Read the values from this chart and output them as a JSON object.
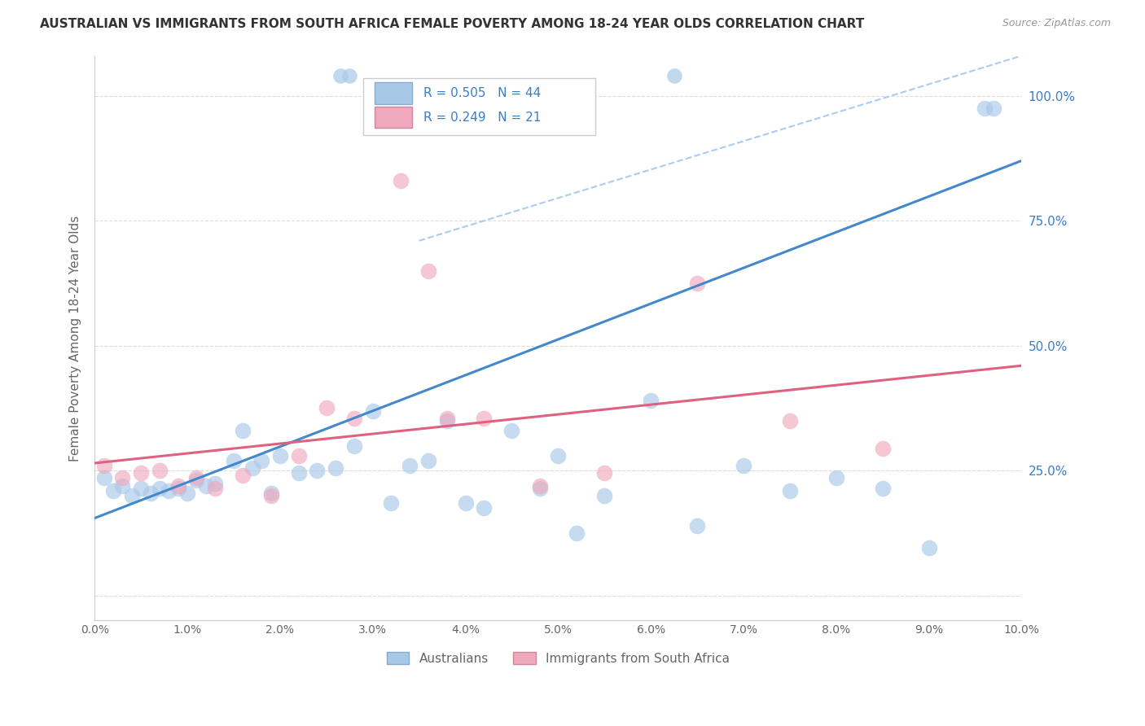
{
  "title": "AUSTRALIAN VS IMMIGRANTS FROM SOUTH AFRICA FEMALE POVERTY AMONG 18-24 YEAR OLDS CORRELATION CHART",
  "source": "Source: ZipAtlas.com",
  "ylabel": "Female Poverty Among 18-24 Year Olds",
  "R_blue": 0.505,
  "N_blue": 44,
  "R_pink": 0.249,
  "N_pink": 21,
  "blue_scatter_color": "#a8c8e8",
  "pink_scatter_color": "#f0a8be",
  "line_blue_color": "#4488cc",
  "line_pink_color": "#e06080",
  "line_dash_color": "#aaccee",
  "legend_label_blue": "Australians",
  "legend_label_pink": "Immigrants from South Africa",
  "legend_text_color": "#3a7dc9",
  "axis_text_color": "#666666",
  "right_axis_color": "#3a7dc9",
  "title_color": "#333333",
  "source_color": "#999999",
  "grid_color": "#dddddd",
  "aus_x": [
    0.001,
    0.002,
    0.003,
    0.004,
    0.005,
    0.006,
    0.007,
    0.008,
    0.009,
    0.01,
    0.011,
    0.012,
    0.013,
    0.015,
    0.016,
    0.017,
    0.018,
    0.019,
    0.02,
    0.022,
    0.024,
    0.026,
    0.028,
    0.03,
    0.032,
    0.034,
    0.036,
    0.038,
    0.04,
    0.042,
    0.045,
    0.048,
    0.05,
    0.052,
    0.055,
    0.06,
    0.065,
    0.07,
    0.075,
    0.08,
    0.085,
    0.09,
    0.096,
    0.097
  ],
  "aus_y": [
    0.235,
    0.21,
    0.22,
    0.2,
    0.215,
    0.205,
    0.215,
    0.21,
    0.215,
    0.205,
    0.23,
    0.22,
    0.225,
    0.27,
    0.33,
    0.255,
    0.27,
    0.205,
    0.28,
    0.245,
    0.25,
    0.255,
    0.3,
    0.37,
    0.185,
    0.26,
    0.27,
    0.35,
    0.185,
    0.175,
    0.33,
    0.215,
    0.28,
    0.125,
    0.2,
    0.39,
    0.14,
    0.26,
    0.21,
    0.235,
    0.215,
    0.095,
    0.975,
    0.975
  ],
  "sa_x": [
    0.001,
    0.003,
    0.005,
    0.007,
    0.009,
    0.011,
    0.013,
    0.016,
    0.019,
    0.022,
    0.025,
    0.028,
    0.033,
    0.036,
    0.038,
    0.042,
    0.048,
    0.055,
    0.065,
    0.075,
    0.085
  ],
  "sa_y": [
    0.26,
    0.235,
    0.245,
    0.25,
    0.22,
    0.235,
    0.215,
    0.24,
    0.2,
    0.28,
    0.375,
    0.355,
    0.83,
    0.65,
    0.355,
    0.355,
    0.22,
    0.245,
    0.625,
    0.35,
    0.295
  ],
  "xlim": [
    0.0,
    0.1
  ],
  "ylim": [
    -0.05,
    1.08
  ],
  "xticks": [
    0.0,
    0.01,
    0.02,
    0.03,
    0.04,
    0.05,
    0.06,
    0.07,
    0.08,
    0.09,
    0.1
  ],
  "yticks": [
    0.0,
    0.25,
    0.5,
    0.75,
    1.0
  ],
  "ytick_labels": [
    "",
    "25.0%",
    "50.0%",
    "75.0%",
    "100.0%"
  ],
  "blue_line_x0": 0.0,
  "blue_line_y0": 0.155,
  "blue_line_x1": 0.1,
  "blue_line_y1": 0.87,
  "pink_line_x0": 0.0,
  "pink_line_y0": 0.265,
  "pink_line_x1": 0.1,
  "pink_line_y1": 0.46,
  "dash_line_x0": 0.035,
  "dash_line_y0": 0.71,
  "dash_line_x1": 0.1,
  "dash_line_y1": 1.08
}
